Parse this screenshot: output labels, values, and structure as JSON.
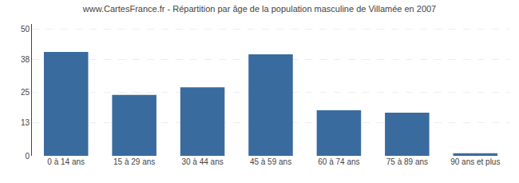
{
  "chart_data": {
    "type": "bar",
    "title": "www.CartesFrance.fr - Répartition par âge de la population masculine de Villamée en 2007",
    "categories": [
      "0 à 14 ans",
      "15 à 29 ans",
      "30 à 44 ans",
      "45 à 59 ans",
      "60 à 74 ans",
      "75 à 89 ans",
      "90 ans et plus"
    ],
    "values": [
      41,
      24,
      27,
      40,
      18,
      17,
      1
    ],
    "color": "#3a6b9e",
    "ylim": [
      0,
      52
    ],
    "yticks": [
      0,
      13,
      25,
      38,
      50
    ],
    "grid": true
  }
}
